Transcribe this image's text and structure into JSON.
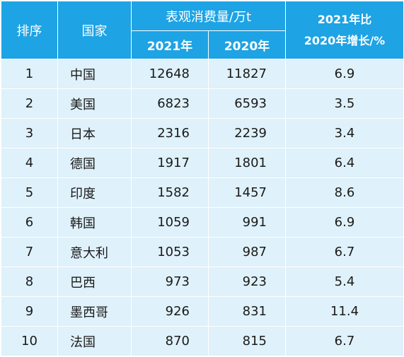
{
  "header": {
    "rank": "排序",
    "country": "国家",
    "consumption": "表观消费量/万t",
    "year2021": "2021年",
    "year2020": "2020年",
    "growth_line1": "2021年比",
    "growth_line2": "2020年增长/%"
  },
  "rows": [
    {
      "rank": "1",
      "country": "中国",
      "v2021": "12648",
      "v2020": "11827",
      "growth": "6.9"
    },
    {
      "rank": "2",
      "country": "美国",
      "v2021": "6823",
      "v2020": "6593",
      "growth": "3.5"
    },
    {
      "rank": "3",
      "country": "日本",
      "v2021": "2316",
      "v2020": "2239",
      "growth": "3.4"
    },
    {
      "rank": "4",
      "country": "德国",
      "v2021": "1917",
      "v2020": "1801",
      "growth": "6.4"
    },
    {
      "rank": "5",
      "country": "印度",
      "v2021": "1582",
      "v2020": "1457",
      "growth": "8.6"
    },
    {
      "rank": "6",
      "country": "韩国",
      "v2021": "1059",
      "v2020": "991",
      "growth": "6.9"
    },
    {
      "rank": "7",
      "country": "意大利",
      "v2021": "1053",
      "v2020": "987",
      "growth": "6.7"
    },
    {
      "rank": "8",
      "country": "巴西",
      "v2021": "973",
      "v2020": "923",
      "growth": "5.4"
    },
    {
      "rank": "9",
      "country": "墨西哥",
      "v2021": "926",
      "v2020": "831",
      "growth": "11.4"
    },
    {
      "rank": "10",
      "country": "法国",
      "v2021": "870",
      "v2020": "815",
      "growth": "6.7"
    }
  ]
}
